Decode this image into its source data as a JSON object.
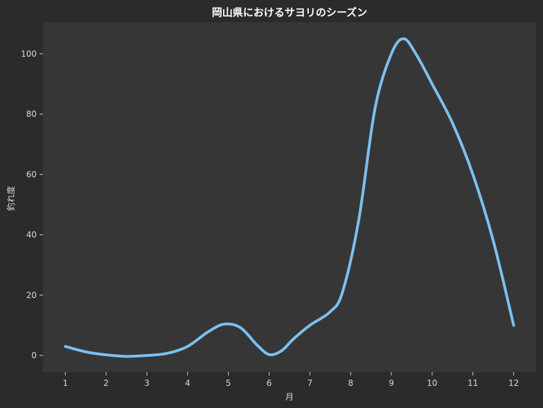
{
  "chart_data": {
    "type": "line",
    "title": "岡山県におけるサヨリのシーズン",
    "xlabel": "月",
    "ylabel": "釣れ度",
    "x": [
      1,
      2,
      3,
      4,
      5,
      6,
      7,
      8,
      9,
      10,
      11,
      12
    ],
    "x_tick_labels": [
      "1",
      "2",
      "3",
      "4",
      "5",
      "6",
      "7",
      "8",
      "9",
      "10",
      "11",
      "12"
    ],
    "xlim": [
      0.45,
      12.55
    ],
    "ylim": [
      -5.5,
      110.5
    ],
    "y_ticks": [
      0,
      20,
      40,
      60,
      80,
      100
    ],
    "y_tick_labels": [
      "0",
      "20",
      "40",
      "60",
      "80",
      "100"
    ],
    "series": [
      {
        "name": "",
        "color": "#7cc0ee",
        "smooth": true,
        "points": [
          [
            1.0,
            3.0
          ],
          [
            1.5,
            1.2
          ],
          [
            2.0,
            0.2
          ],
          [
            2.5,
            -0.3
          ],
          [
            3.0,
            0.0
          ],
          [
            3.5,
            0.7
          ],
          [
            4.0,
            3.0
          ],
          [
            4.5,
            7.8
          ],
          [
            4.9,
            10.4
          ],
          [
            5.3,
            9.2
          ],
          [
            5.7,
            3.5
          ],
          [
            6.0,
            0.3
          ],
          [
            6.3,
            1.5
          ],
          [
            6.6,
            5.5
          ],
          [
            7.0,
            10.0
          ],
          [
            7.5,
            14.5
          ],
          [
            7.8,
            21.0
          ],
          [
            8.2,
            45.0
          ],
          [
            8.6,
            82.0
          ],
          [
            9.0,
            100.0
          ],
          [
            9.3,
            105.0
          ],
          [
            9.6,
            100.0
          ],
          [
            10.0,
            90.0
          ],
          [
            10.5,
            77.0
          ],
          [
            11.0,
            60.0
          ],
          [
            11.5,
            38.0
          ],
          [
            12.0,
            10.0
          ]
        ]
      }
    ],
    "background": "#2b2b2b",
    "plot_background": "#363636",
    "grid": false
  }
}
